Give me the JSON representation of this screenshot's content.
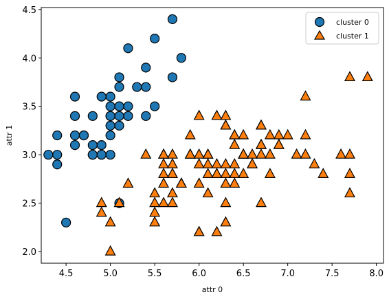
{
  "chart_data": {
    "type": "scatter",
    "xlabel": "attr 0",
    "ylabel": "attr 1",
    "xlim": [
      4.22,
      8.08
    ],
    "ylim": [
      1.88,
      4.52
    ],
    "xticks": [
      "4.5",
      "5.0",
      "5.5",
      "6.0",
      "6.5",
      "7.0",
      "7.5",
      "8.0"
    ],
    "yticks": [
      "2.0",
      "2.5",
      "3.0",
      "3.5",
      "4.0",
      "4.5"
    ],
    "grid": false,
    "legend_position": "top-right",
    "series": [
      {
        "name": "cluster 0",
        "marker": "circle",
        "color": "#1f77b4",
        "points": [
          [
            5.1,
            3.5
          ],
          [
            4.9,
            3.0
          ],
          [
            4.7,
            3.2
          ],
          [
            4.6,
            3.1
          ],
          [
            5.0,
            3.6
          ],
          [
            5.4,
            3.9
          ],
          [
            4.6,
            3.4
          ],
          [
            5.0,
            3.4
          ],
          [
            4.4,
            2.9
          ],
          [
            4.9,
            3.1
          ],
          [
            5.4,
            3.7
          ],
          [
            4.8,
            3.4
          ],
          [
            4.8,
            3.0
          ],
          [
            4.3,
            3.0
          ],
          [
            5.8,
            4.0
          ],
          [
            5.7,
            4.4
          ],
          [
            5.1,
            3.8
          ],
          [
            5.7,
            3.8
          ],
          [
            5.4,
            3.4
          ],
          [
            5.1,
            3.7
          ],
          [
            4.6,
            3.6
          ],
          [
            5.1,
            3.3
          ],
          [
            5.0,
            3.0
          ],
          [
            5.2,
            3.5
          ],
          [
            5.2,
            3.4
          ],
          [
            4.7,
            3.2
          ],
          [
            4.8,
            3.1
          ],
          [
            5.2,
            4.1
          ],
          [
            5.5,
            4.2
          ],
          [
            5.0,
            3.2
          ],
          [
            5.5,
            3.5
          ],
          [
            4.4,
            3.0
          ],
          [
            5.1,
            3.4
          ],
          [
            5.0,
            3.5
          ],
          [
            4.5,
            2.3
          ],
          [
            4.4,
            3.2
          ],
          [
            5.3,
            3.7
          ],
          [
            4.9,
            3.6
          ],
          [
            5.1,
            2.5
          ],
          [
            5.0,
            3.3
          ],
          [
            4.6,
            3.2
          ],
          [
            5.1,
            3.5
          ],
          [
            4.9,
            3.0
          ],
          [
            4.8,
            3.0
          ],
          [
            5.0,
            3.4
          ]
        ]
      },
      {
        "name": "cluster 1",
        "marker": "triangle",
        "color": "#ff7f0e",
        "points": [
          [
            7.0,
            3.2
          ],
          [
            6.4,
            3.2
          ],
          [
            6.9,
            3.1
          ],
          [
            5.5,
            2.3
          ],
          [
            6.5,
            2.8
          ],
          [
            5.7,
            2.8
          ],
          [
            6.3,
            3.3
          ],
          [
            4.9,
            2.4
          ],
          [
            6.6,
            2.9
          ],
          [
            5.2,
            2.7
          ],
          [
            5.0,
            2.0
          ],
          [
            5.9,
            3.0
          ],
          [
            6.0,
            2.2
          ],
          [
            6.1,
            2.9
          ],
          [
            5.6,
            2.9
          ],
          [
            6.7,
            3.1
          ],
          [
            5.6,
            3.0
          ],
          [
            5.8,
            2.7
          ],
          [
            6.2,
            2.2
          ],
          [
            5.6,
            2.5
          ],
          [
            5.9,
            3.2
          ],
          [
            6.1,
            2.8
          ],
          [
            6.3,
            2.5
          ],
          [
            6.4,
            2.9
          ],
          [
            6.8,
            2.8
          ],
          [
            6.7,
            3.0
          ],
          [
            6.0,
            2.9
          ],
          [
            5.7,
            2.6
          ],
          [
            5.5,
            2.4
          ],
          [
            5.8,
            2.7
          ],
          [
            6.0,
            2.7
          ],
          [
            5.4,
            3.0
          ],
          [
            6.0,
            3.4
          ],
          [
            6.7,
            3.1
          ],
          [
            6.3,
            2.3
          ],
          [
            5.5,
            2.5
          ],
          [
            5.5,
            2.6
          ],
          [
            6.1,
            3.0
          ],
          [
            5.0,
            2.3
          ],
          [
            5.6,
            2.7
          ],
          [
            5.7,
            3.0
          ],
          [
            5.7,
            2.9
          ],
          [
            6.2,
            2.9
          ],
          [
            5.1,
            2.5
          ],
          [
            5.7,
            2.8
          ],
          [
            6.3,
            3.3
          ],
          [
            5.8,
            2.7
          ],
          [
            7.1,
            3.0
          ],
          [
            6.3,
            2.9
          ],
          [
            6.5,
            3.0
          ],
          [
            7.6,
            3.0
          ],
          [
            4.9,
            2.5
          ],
          [
            7.3,
            2.9
          ],
          [
            6.7,
            2.5
          ],
          [
            7.2,
            3.6
          ],
          [
            6.5,
            3.2
          ],
          [
            6.4,
            2.7
          ],
          [
            6.8,
            3.0
          ],
          [
            5.7,
            2.5
          ],
          [
            6.4,
            3.2
          ],
          [
            6.5,
            3.0
          ],
          [
            7.7,
            3.8
          ],
          [
            7.7,
            2.6
          ],
          [
            6.0,
            2.2
          ],
          [
            6.9,
            3.2
          ],
          [
            5.6,
            2.8
          ],
          [
            7.7,
            2.8
          ],
          [
            6.3,
            2.7
          ],
          [
            6.7,
            3.3
          ],
          [
            7.2,
            3.2
          ],
          [
            6.2,
            2.8
          ],
          [
            6.1,
            3.0
          ],
          [
            6.4,
            2.8
          ],
          [
            7.2,
            3.0
          ],
          [
            7.4,
            2.8
          ],
          [
            7.9,
            3.8
          ],
          [
            6.3,
            2.8
          ],
          [
            6.1,
            2.6
          ],
          [
            7.7,
            3.0
          ],
          [
            6.3,
            3.4
          ],
          [
            6.4,
            3.1
          ],
          [
            6.0,
            3.0
          ],
          [
            6.9,
            3.1
          ],
          [
            6.7,
            3.1
          ],
          [
            5.8,
            2.7
          ],
          [
            6.8,
            3.2
          ],
          [
            6.7,
            3.3
          ],
          [
            6.5,
            3.0
          ],
          [
            6.2,
            3.4
          ],
          [
            5.9,
            3.0
          ],
          [
            6.6,
            3.0
          ],
          [
            5.6,
            3.0
          ],
          [
            6.2,
            2.8
          ],
          [
            6.6,
            2.9
          ]
        ]
      }
    ]
  }
}
